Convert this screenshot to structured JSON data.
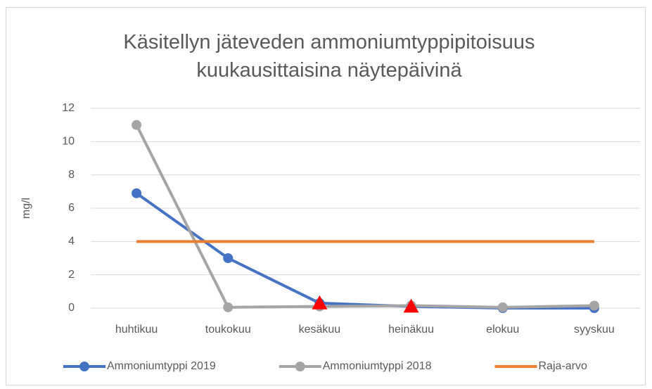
{
  "chart_data": {
    "type": "line",
    "title": "Käsitellyn jäteveden ammoniumtyppipitoisuus kuukausittaisina näytepäivinä",
    "y_label": "mg/l",
    "categories": [
      "huhtikuu",
      "toukokuu",
      "kesäkuu",
      "heinäkuu",
      "elokuu",
      "syyskuu"
    ],
    "series": [
      {
        "name": "Ammoniumtyppi 2019",
        "color": "#4472c4",
        "marker": "circle",
        "values": [
          6.9,
          3.0,
          0.3,
          0.1,
          0.0,
          0.0
        ],
        "highlight_points": {
          "color": "#ff0000",
          "marker": "triangle",
          "indices": [
            2,
            3
          ]
        }
      },
      {
        "name": "Ammoniumtyppi 2018",
        "color": "#a5a5a5",
        "marker": "circle",
        "values": [
          11,
          0.05,
          0.1,
          0.15,
          0.05,
          0.15
        ]
      },
      {
        "name": "Raja-arvo",
        "color": "#ed7d31",
        "marker": "none",
        "values": [
          4,
          4,
          4,
          4,
          4,
          4
        ]
      }
    ],
    "ylim": [
      0,
      12
    ],
    "yticks": [
      0,
      2,
      4,
      6,
      8,
      10,
      12
    ],
    "grid": true,
    "legend": "bottom"
  }
}
